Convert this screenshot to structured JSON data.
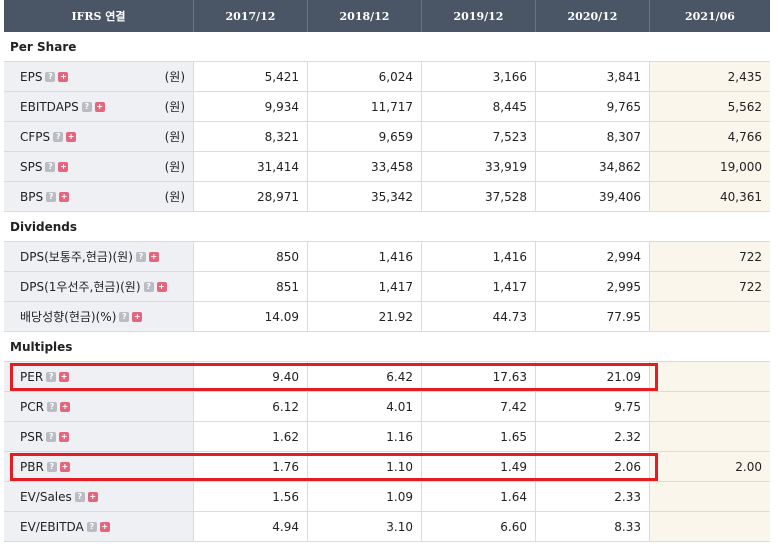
{
  "header": {
    "label": "IFRS 연결",
    "periods": [
      "2017/12",
      "2018/12",
      "2019/12",
      "2020/12",
      "2021/06"
    ]
  },
  "sections": [
    {
      "title": "Per Share",
      "rows": [
        {
          "label": "EPS",
          "unit": "(원)",
          "values": [
            "5,421",
            "6,024",
            "3,166",
            "3,841",
            "2,435"
          ]
        },
        {
          "label": "EBITDAPS",
          "unit": "(원)",
          "values": [
            "9,934",
            "11,717",
            "8,445",
            "9,765",
            "5,562"
          ]
        },
        {
          "label": "CFPS",
          "unit": "(원)",
          "values": [
            "8,321",
            "9,659",
            "7,523",
            "8,307",
            "4,766"
          ]
        },
        {
          "label": "SPS",
          "unit": "(원)",
          "values": [
            "31,414",
            "33,458",
            "33,919",
            "34,862",
            "19,000"
          ]
        },
        {
          "label": "BPS",
          "unit": "(원)",
          "values": [
            "28,971",
            "35,342",
            "37,528",
            "39,406",
            "40,361"
          ]
        }
      ]
    },
    {
      "title": "Dividends",
      "rows": [
        {
          "label": "DPS(보통주,현금)(원)",
          "unit": "",
          "values": [
            "850",
            "1,416",
            "1,416",
            "2,994",
            "722"
          ]
        },
        {
          "label": "DPS(1우선주,현금)(원)",
          "unit": "",
          "values": [
            "851",
            "1,417",
            "1,417",
            "2,995",
            "722"
          ]
        },
        {
          "label": "배당성향(현금)(%)",
          "unit": "",
          "values": [
            "14.09",
            "21.92",
            "44.73",
            "77.95",
            ""
          ]
        }
      ]
    },
    {
      "title": "Multiples",
      "rows": [
        {
          "label": "PER",
          "unit": "",
          "values": [
            "9.40",
            "6.42",
            "17.63",
            "21.09",
            ""
          ]
        },
        {
          "label": "PCR",
          "unit": "",
          "values": [
            "6.12",
            "4.01",
            "7.42",
            "9.75",
            ""
          ]
        },
        {
          "label": "PSR",
          "unit": "",
          "values": [
            "1.62",
            "1.16",
            "1.65",
            "2.32",
            ""
          ]
        },
        {
          "label": "PBR",
          "unit": "",
          "values": [
            "1.76",
            "1.10",
            "1.49",
            "2.06",
            "2.00"
          ]
        },
        {
          "label": "EV/Sales",
          "unit": "",
          "values": [
            "1.56",
            "1.09",
            "1.64",
            "2.33",
            ""
          ]
        },
        {
          "label": "EV/EBITDA",
          "unit": "",
          "values": [
            "4.94",
            "3.10",
            "6.60",
            "8.33",
            ""
          ]
        }
      ]
    }
  ],
  "icons": {
    "help": "question-icon",
    "expand": "plus-icon"
  },
  "colors": {
    "header_bg": "#4a5565",
    "highlight": "#e41c24",
    "label_bg": "#eef0f4",
    "latest_bg": "#fbf6ec"
  }
}
